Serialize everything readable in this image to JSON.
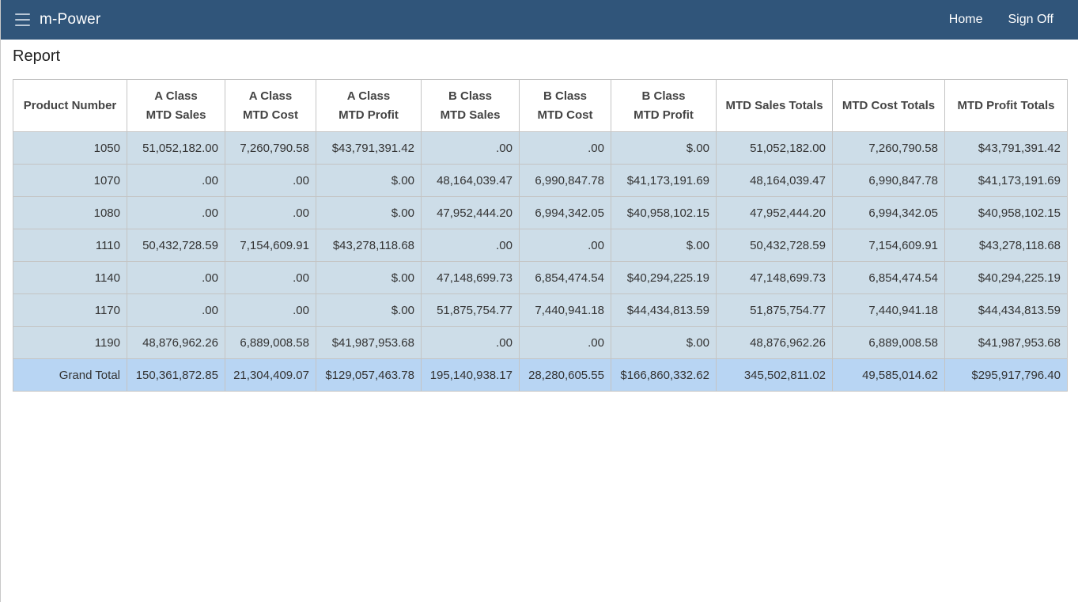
{
  "navbar": {
    "app_title": "m-Power",
    "menu_icon": "hamburger-menu-icon",
    "links": {
      "home": "Home",
      "sign_off": "Sign Off"
    },
    "background_color": "#30557a"
  },
  "report": {
    "title": "Report",
    "columns": [
      [
        "Product Number"
      ],
      [
        "A Class",
        "MTD Sales"
      ],
      [
        "A Class",
        "MTD Cost"
      ],
      [
        "A Class",
        "MTD Profit"
      ],
      [
        "B Class",
        "MTD Sales"
      ],
      [
        "B Class",
        "MTD Cost"
      ],
      [
        "B Class",
        "MTD Profit"
      ],
      [
        "MTD Sales Totals"
      ],
      [
        "MTD Cost Totals"
      ],
      [
        "MTD Profit Totals"
      ]
    ],
    "rows": [
      [
        "1050",
        "51,052,182.00",
        "7,260,790.58",
        "$43,791,391.42",
        ".00",
        ".00",
        "$.00",
        "51,052,182.00",
        "7,260,790.58",
        "$43,791,391.42"
      ],
      [
        "1070",
        ".00",
        ".00",
        "$.00",
        "48,164,039.47",
        "6,990,847.78",
        "$41,173,191.69",
        "48,164,039.47",
        "6,990,847.78",
        "$41,173,191.69"
      ],
      [
        "1080",
        ".00",
        ".00",
        "$.00",
        "47,952,444.20",
        "6,994,342.05",
        "$40,958,102.15",
        "47,952,444.20",
        "6,994,342.05",
        "$40,958,102.15"
      ],
      [
        "1110",
        "50,432,728.59",
        "7,154,609.91",
        "$43,278,118.68",
        ".00",
        ".00",
        "$.00",
        "50,432,728.59",
        "7,154,609.91",
        "$43,278,118.68"
      ],
      [
        "1140",
        ".00",
        ".00",
        "$.00",
        "47,148,699.73",
        "6,854,474.54",
        "$40,294,225.19",
        "47,148,699.73",
        "6,854,474.54",
        "$40,294,225.19"
      ],
      [
        "1170",
        ".00",
        ".00",
        "$.00",
        "51,875,754.77",
        "7,440,941.18",
        "$44,434,813.59",
        "51,875,754.77",
        "7,440,941.18",
        "$44,434,813.59"
      ],
      [
        "1190",
        "48,876,962.26",
        "6,889,008.58",
        "$41,987,953.68",
        ".00",
        ".00",
        "$.00",
        "48,876,962.26",
        "6,889,008.58",
        "$41,987,953.68"
      ]
    ],
    "grand_total": [
      "Grand Total",
      "150,361,872.85",
      "21,304,409.07",
      "$129,057,463.78",
      "195,140,938.17",
      "28,280,605.55",
      "$166,860,332.62",
      "345,502,811.02",
      "49,585,014.62",
      "$295,917,796.40"
    ],
    "row_color": "#cddde8",
    "total_row_color": "#b8d5f3"
  }
}
